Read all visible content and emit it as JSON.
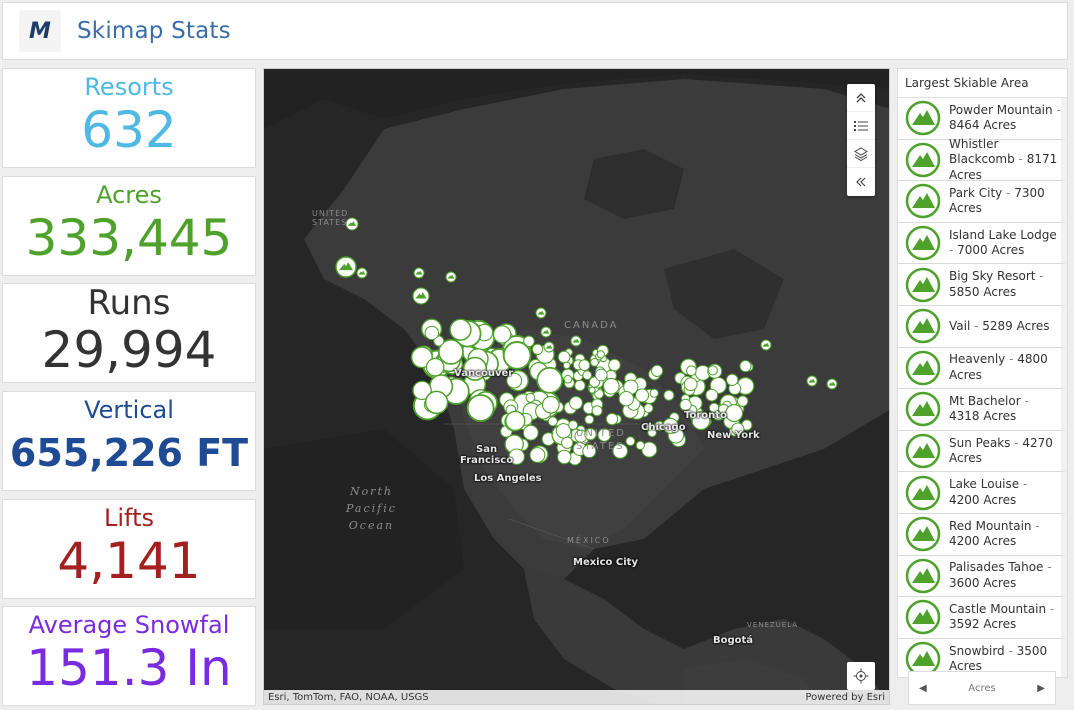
{
  "header": {
    "logo_letter": "M",
    "title": "Skimap Stats"
  },
  "stats": [
    {
      "id": "resorts",
      "label": "Resorts",
      "value": "632",
      "color": "#4fb9e3"
    },
    {
      "id": "acres",
      "label": "Acres",
      "value": "333,445",
      "color": "#4ea22b"
    },
    {
      "id": "runs",
      "label": "Runs",
      "value": "29,994",
      "color": "#333333"
    },
    {
      "id": "vertical",
      "label": "Vertical",
      "value": "655,226 FT",
      "color": "#1f4a94"
    },
    {
      "id": "lifts",
      "label": "Lifts",
      "value": "4,141",
      "color": "#a32020"
    },
    {
      "id": "snowfall",
      "label": "Average Snowfal",
      "value": "151.3 In",
      "color": "#7a2be0"
    }
  ],
  "map": {
    "labels": {
      "us_north": "UNITED\nSTATES",
      "canada": "CANADA",
      "us": "UNITED\nSTATES",
      "mexico": "MÉXICO",
      "venezuela": "VENEZUELA",
      "ocean": "North\nPacific\nOcean"
    },
    "cities": {
      "vancouver": "Vancouver",
      "sf": "San\nFrancisco",
      "la": "Los Angeles",
      "chicago": "Chicago",
      "toronto": "Toronto",
      "newyork": "New York",
      "mexicocity": "Mexico City",
      "bogota": "Bogotá"
    },
    "toolbar_icons": [
      "expand-icon",
      "legend-icon",
      "layers-icon",
      "collapse-icon"
    ],
    "attribution": "Esri, TomTom, FAO, NOAA, USGS",
    "powered_by": "Powered by Esri",
    "marker_color": "#4ea22b"
  },
  "list": {
    "title": "Largest Skiable Area",
    "items": [
      {
        "name": "Powder Mountain",
        "value": "8464 Acres"
      },
      {
        "name": "Whistler Blackcomb",
        "value": "8171 Acres"
      },
      {
        "name": "Park City",
        "value": "7300 Acres"
      },
      {
        "name": "Island Lake Lodge",
        "value": "7000 Acres"
      },
      {
        "name": "Big Sky Resort",
        "value": "5850 Acres"
      },
      {
        "name": "Vail",
        "value": "5289 Acres"
      },
      {
        "name": "Heavenly",
        "value": "4800 Acres"
      },
      {
        "name": "Mt Bachelor",
        "value": "4318 Acres"
      },
      {
        "name": "Sun Peaks",
        "value": "4270 Acres"
      },
      {
        "name": "Lake Louise",
        "value": "4200 Acres"
      },
      {
        "name": "Red Mountain",
        "value": "4200 Acres"
      },
      {
        "name": "Palisades Tahoe",
        "value": "3600 Acres"
      },
      {
        "name": "Castle Mountain",
        "value": "3592 Acres"
      },
      {
        "name": "Snowbird",
        "value": "3500 Acres"
      }
    ],
    "pager_label": "Acres"
  }
}
